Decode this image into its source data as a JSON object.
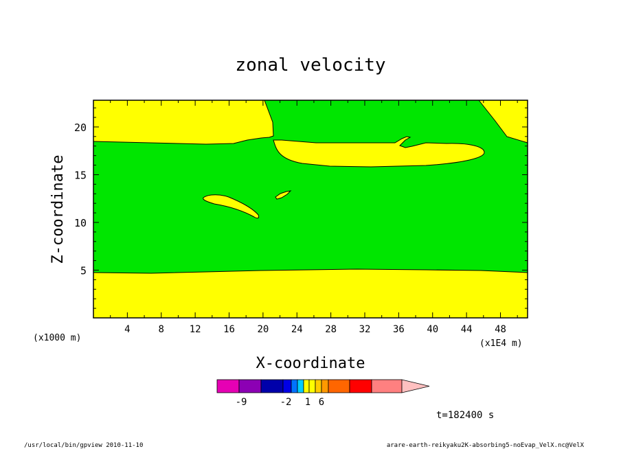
{
  "chart_data": {
    "type": "heatmap",
    "title": "zonal velocity",
    "xlabel": "X-coordinate",
    "ylabel": "Z-coordinate",
    "x_unit": "(x1E4 m)",
    "y_unit": "(x1000 m)",
    "xlim": [
      0,
      51.2
    ],
    "ylim": [
      0,
      22.8
    ],
    "x_ticks": [
      4,
      8,
      12,
      16,
      20,
      24,
      28,
      32,
      36,
      40,
      44,
      48
    ],
    "y_ticks": [
      5,
      10,
      15,
      20
    ],
    "x_tick_labels": [
      "4",
      "8",
      "12",
      "16",
      "20",
      "24",
      "28",
      "32",
      "36",
      "40",
      "44",
      "48"
    ],
    "y_tick_labels": [
      "5",
      "10",
      "15",
      "20"
    ],
    "colors": {
      "background_band": "#ffff00",
      "main_band": "#00e600"
    },
    "colorbar": {
      "colors": [
        "#e600b4",
        "#8c00b4",
        "#0000aa",
        "#0000e6",
        "#0073ff",
        "#00ccff",
        "#ffff00",
        "#ffff00",
        "#ffcc00",
        "#ff9900",
        "#ff6600",
        "#ff0000",
        "#ff8080",
        "#ffc0c0"
      ],
      "labels": [
        "-9",
        "-2",
        "1",
        "6"
      ]
    },
    "time_label": "t=182400 s",
    "footer_left": "/usr/local/bin/gpview   2010-11-10",
    "footer_right": "arare-earth-reikyaku2K-absorbing5-noEvap_VelX.nc@VelX"
  }
}
